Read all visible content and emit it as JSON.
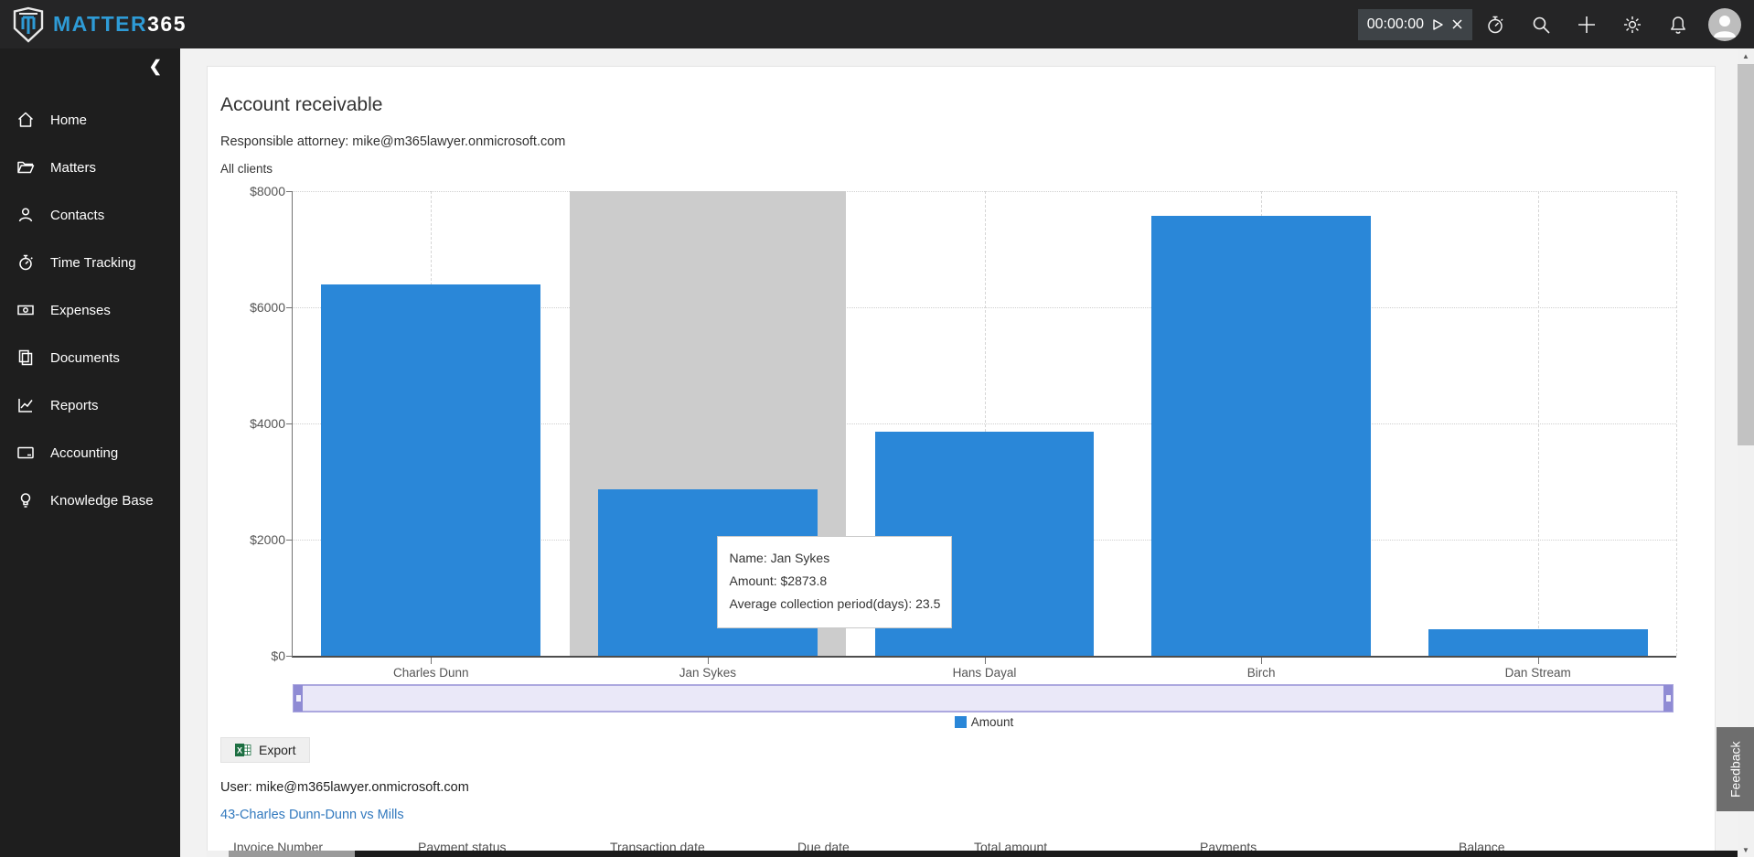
{
  "topbar": {
    "brand_primary": "MATTER",
    "brand_secondary": "365",
    "timer_value": "00:00:00"
  },
  "sidebar": {
    "items": [
      {
        "label": "Home"
      },
      {
        "label": "Matters"
      },
      {
        "label": "Contacts"
      },
      {
        "label": "Time Tracking"
      },
      {
        "label": "Expenses"
      },
      {
        "label": "Documents"
      },
      {
        "label": "Reports"
      },
      {
        "label": "Accounting"
      },
      {
        "label": "Knowledge Base"
      }
    ]
  },
  "main": {
    "title": "Account receivable",
    "responsible_attorney": "Responsible attorney: mike@m365lawyer.onmicrosoft.com",
    "clients_filter": "All clients",
    "export_label": "Export",
    "user_line": "User: mike@m365lawyer.onmicrosoft.com",
    "matter_link": "43-Charles Dunn-Dunn vs Mills",
    "table_columns": [
      "Invoice Number",
      "Payment status",
      "Transaction date",
      "Due date",
      "Total amount",
      "Payments",
      "Balance"
    ],
    "feedback_label": "Feedback"
  },
  "colors": {
    "brand_blue": "#2E9BD6",
    "bar_blue": "#2A87D8",
    "highlight_gray": "#CCCCCC",
    "link_blue": "#3279BE",
    "excel_green": "#1D6F42"
  },
  "chart_data": {
    "type": "bar",
    "title": "",
    "xlabel": "",
    "ylabel": "",
    "categories": [
      "Charles Dunn",
      "Jan Sykes",
      "Hans Dayal",
      "Birch",
      "Dan Stream"
    ],
    "series": [
      {
        "name": "Amount",
        "values": [
          6400,
          2873.8,
          3860,
          7570,
          460
        ]
      }
    ],
    "ymax": 8000,
    "ymin": 0,
    "y_ticks": [
      "$8000",
      "$6000",
      "$4000",
      "$2000",
      "$0"
    ],
    "grid": true,
    "legend": "Amount",
    "legend_position": "bottom",
    "highlight_index": 1,
    "bar_color": "#2A87D8",
    "highlight_color": "#CCCCCC",
    "tooltip": {
      "lines": [
        "Name: Jan Sykes",
        "Amount: $2873.8",
        "Average collection period(days): 23.5"
      ]
    }
  }
}
